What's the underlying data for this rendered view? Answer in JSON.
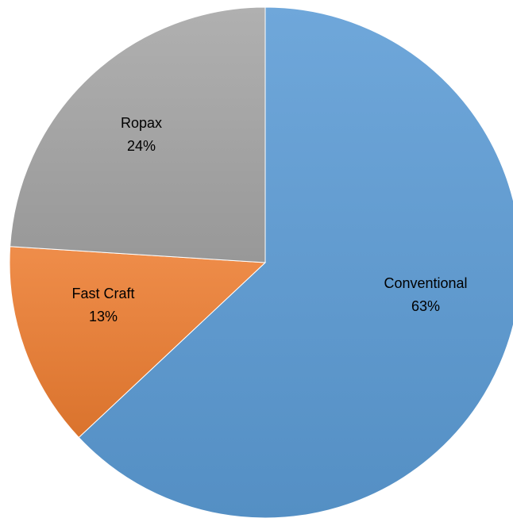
{
  "chart_data": {
    "type": "pie",
    "categories": [
      "Conventional",
      "Fast Craft",
      "Ropax"
    ],
    "values": [
      63,
      13,
      24
    ],
    "data_labels": [
      "63%",
      "13%",
      "24%"
    ],
    "colors": [
      "#5b9bd5",
      "#ed7d31",
      "#a5a5a5"
    ],
    "start": "12 o'clock",
    "direction": "clockwise",
    "legend": "none"
  }
}
